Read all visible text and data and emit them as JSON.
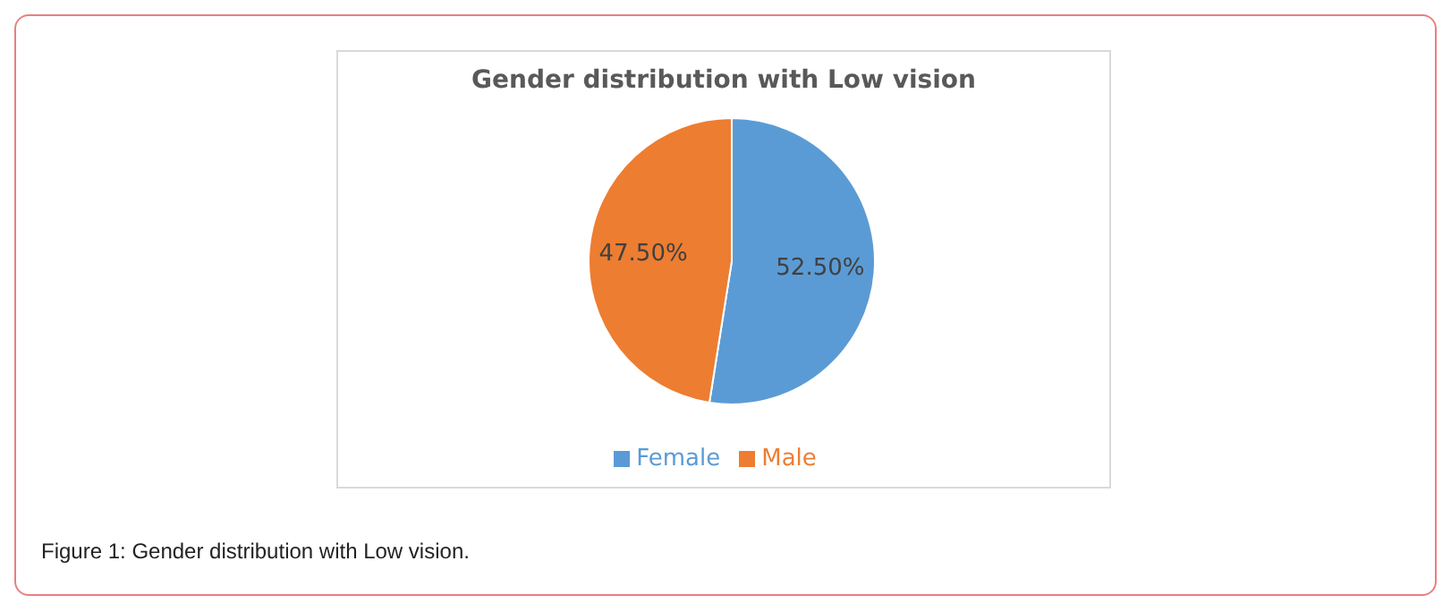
{
  "chart_data": {
    "type": "pie",
    "title": "Gender distribution with Low vision",
    "categories": [
      "Female",
      "Male"
    ],
    "values": [
      52.5,
      47.5
    ],
    "colors": [
      "#5b9bd5",
      "#ed7d31"
    ],
    "value_labels": [
      "52.50%",
      "47.50%"
    ],
    "legend": "bottom",
    "annotations": [
      "Figure 1: Gender distribution with Low vision."
    ]
  }
}
